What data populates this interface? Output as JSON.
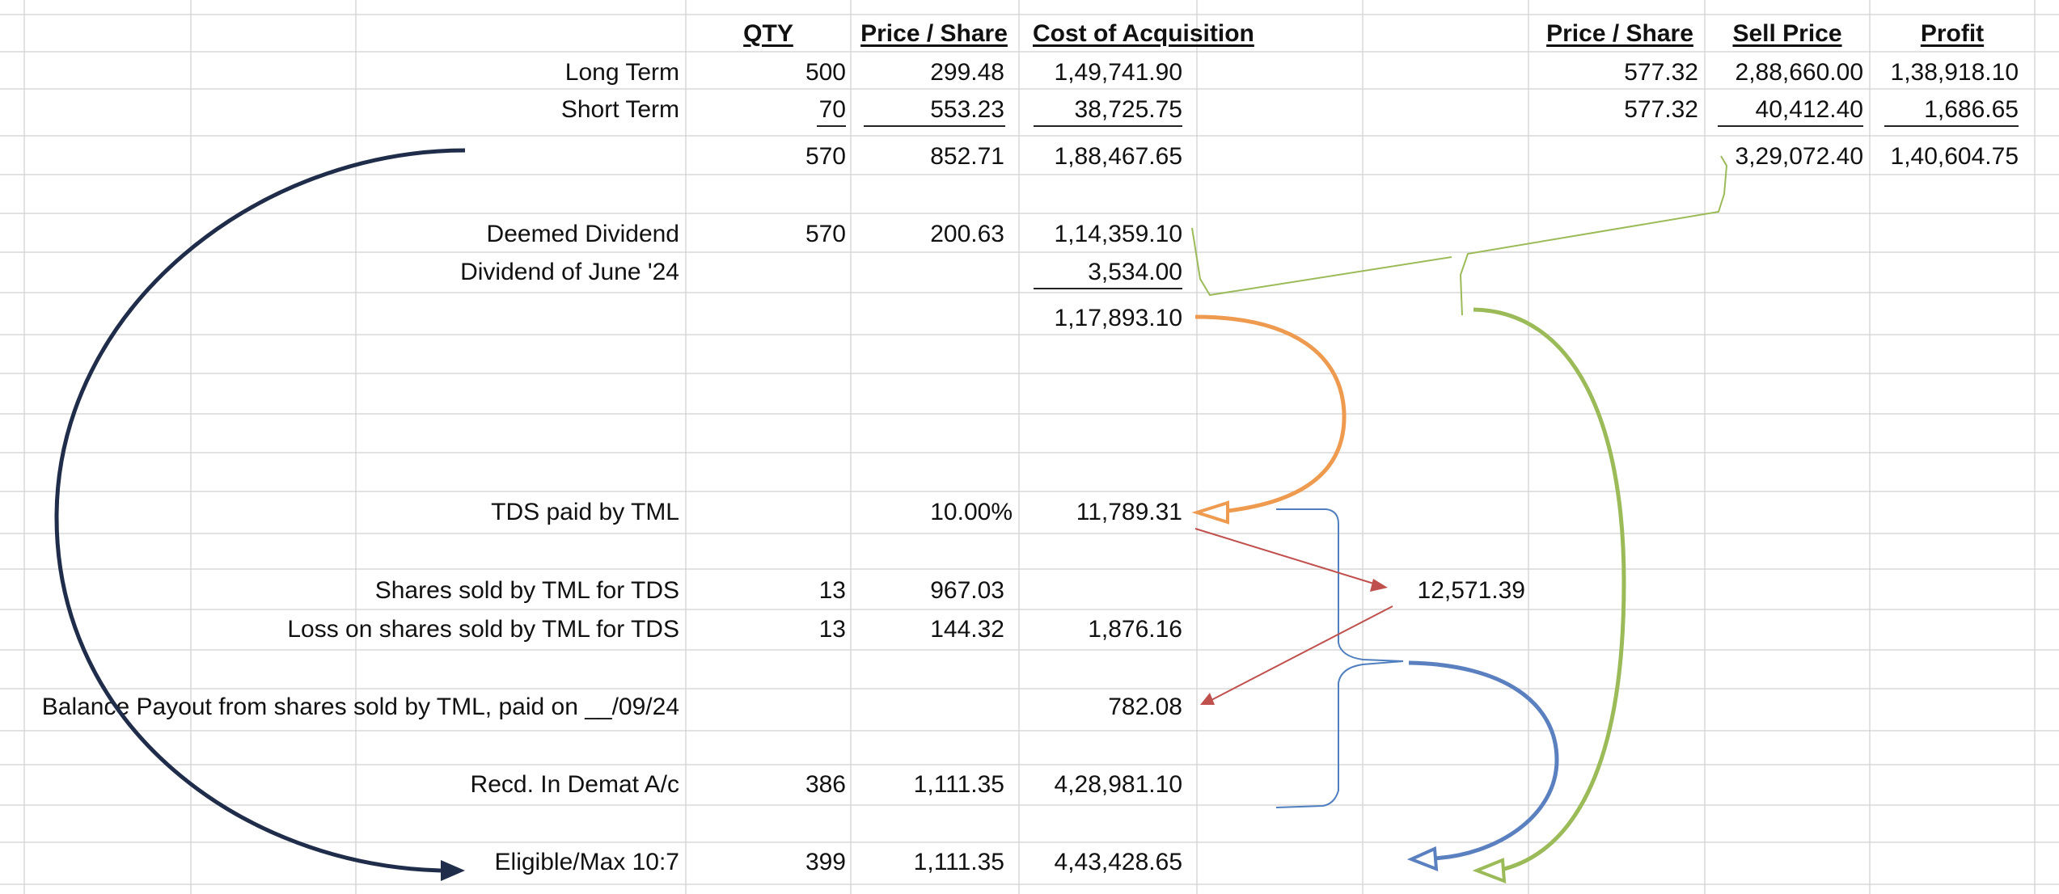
{
  "headers": {
    "qty": "QTY",
    "price_share": "Price / Share",
    "cost_acq": "Cost of Acquisition",
    "price_share_2": "Price / Share",
    "sell_price": "Sell Price",
    "profit": "Profit"
  },
  "rows": {
    "long_term": {
      "label": "Long Term",
      "qty": "500",
      "price": "299.48",
      "cost": "1,49,741.90",
      "price2": "577.32",
      "sell": "2,88,660.00",
      "profit": "1,38,918.10"
    },
    "short_term": {
      "label": "Short Term",
      "qty": "70",
      "price": "553.23",
      "cost": "38,725.75",
      "price2": "577.32",
      "sell": "40,412.40",
      "profit": "1,686.65"
    },
    "total1": {
      "qty": "570",
      "price": "852.71",
      "cost": "1,88,467.65",
      "sell": "3,29,072.40",
      "profit": "1,40,604.75"
    },
    "deemed_dividend": {
      "label": "Deemed Dividend",
      "qty": "570",
      "price": "200.63",
      "cost": "1,14,359.10"
    },
    "dividend_june": {
      "label": "Dividend of June '24",
      "cost": "3,534.00"
    },
    "total2": {
      "cost": "1,17,893.10"
    },
    "tds": {
      "label": "TDS paid by TML",
      "price": "10.00%",
      "cost": "11,789.31"
    },
    "shares_sold": {
      "label": "Shares sold by TML for TDS",
      "qty": "13",
      "price": "967.03",
      "side": "12,571.39"
    },
    "loss_sold": {
      "label": "Loss on shares sold by TML for TDS",
      "qty": "13",
      "price": "144.32",
      "cost": "1,876.16"
    },
    "balance_payout": {
      "label": "Balance Payout from shares sold by TML, paid on __/09/24",
      "cost": "782.08"
    },
    "recd_demat": {
      "label": "Recd. In Demat A/c",
      "qty": "386",
      "price": "1,111.35",
      "cost": "4,28,981.10"
    },
    "eligible": {
      "label": "Eligible/Max 10:7",
      "qty": "399",
      "price": "1,111.35",
      "cost": "4,43,428.65"
    }
  },
  "colors": {
    "grid": "#d8d8d8",
    "navy_arrow": "#1f2d4a",
    "orange_arrow": "#ee9b50",
    "green_arrow": "#9bbb59",
    "blue_arrow": "#5b80c0",
    "red_arrow": "#c0504d",
    "thin_blue": "#4f7fbf"
  }
}
